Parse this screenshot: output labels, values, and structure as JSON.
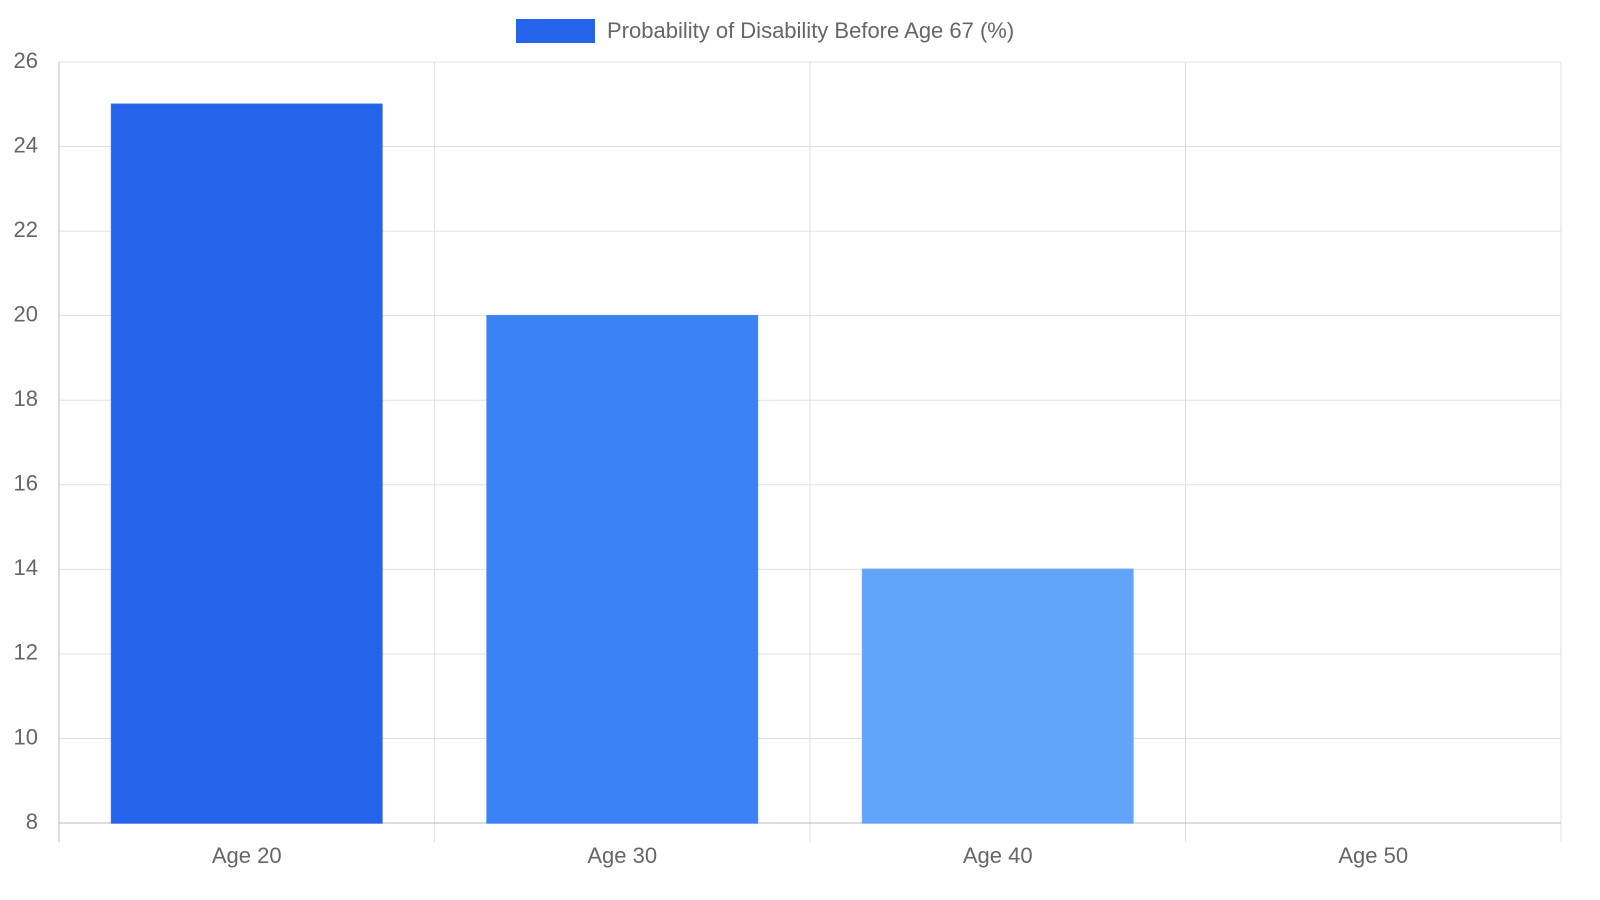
{
  "chart_data": {
    "type": "bar",
    "categories": [
      "Age 20",
      "Age 30",
      "Age 40",
      "Age 50"
    ],
    "series": [
      {
        "name": "Probability of Disability Before Age 67 (%)",
        "values": [
          25,
          20,
          14,
          8
        ],
        "colors": [
          "#2563eb",
          "#3b82f6",
          "#60a5fa",
          "#93c5fd"
        ]
      }
    ],
    "ylim": [
      8,
      26
    ],
    "yticks": [
      8,
      10,
      12,
      14,
      16,
      18,
      20,
      22,
      24,
      26
    ],
    "grid": true
  }
}
